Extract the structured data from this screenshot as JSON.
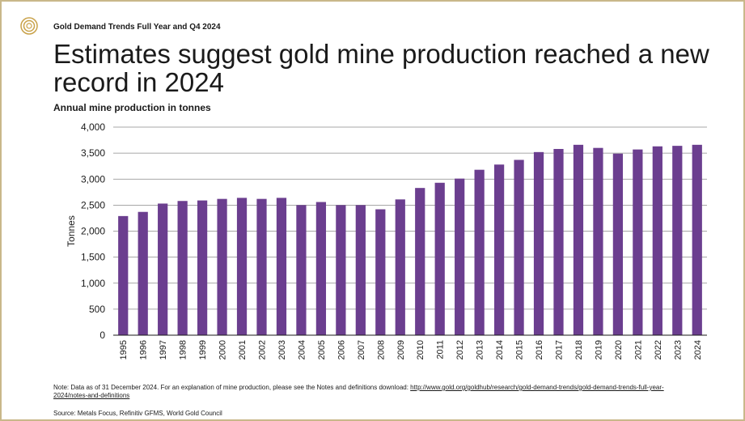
{
  "header": {
    "doc_title": "Gold Demand Trends Full Year and Q4 2024",
    "headline": "Estimates suggest gold mine production reached a new record in 2024",
    "subtitle": "Annual mine production in tonnes"
  },
  "footer": {
    "note_text": "Note: Data as of 31 December 2024. For an explanation of mine production, please see the Notes and definitions download: ",
    "note_link": "http://www.gold.org/goldhub/research/gold-demand-trends/gold-demand-trends-full-year-2024/notes-and-definitions",
    "source": "Source: Metals Focus, Refinitiv GFMS, World Gold Council"
  },
  "colors": {
    "bar": "#6b3e8f",
    "frame": "#c9b88a",
    "logo": "#c9a24a"
  },
  "chart_data": {
    "type": "bar",
    "title": "Annual mine production in tonnes",
    "xlabel": "",
    "ylabel": "Tonnes",
    "ylim": [
      0,
      4000
    ],
    "yticks": [
      0,
      500,
      1000,
      1500,
      2000,
      2500,
      3000,
      3500,
      4000
    ],
    "ytick_labels": [
      "0",
      "500",
      "1,000",
      "1,500",
      "2,000",
      "2,500",
      "3,000",
      "3,500",
      "4,000"
    ],
    "grid": true,
    "categories": [
      "1995",
      "1996",
      "1997",
      "1998",
      "1999",
      "2000",
      "2001",
      "2002",
      "2003",
      "2004",
      "2005",
      "2006",
      "2007",
      "2008",
      "2009",
      "2010",
      "2011",
      "2012",
      "2013",
      "2014",
      "2015",
      "2016",
      "2017",
      "2018",
      "2019",
      "2020",
      "2021",
      "2022",
      "2023",
      "2024"
    ],
    "values": [
      2290,
      2370,
      2530,
      2580,
      2590,
      2620,
      2640,
      2620,
      2640,
      2500,
      2560,
      2500,
      2500,
      2420,
      2610,
      2830,
      2930,
      3010,
      3180,
      3280,
      3370,
      3520,
      3580,
      3660,
      3600,
      3490,
      3570,
      3630,
      3640,
      3660
    ]
  }
}
